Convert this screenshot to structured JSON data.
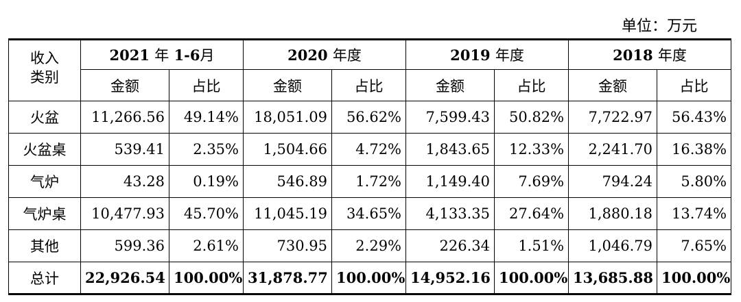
{
  "unit_label": "单位：万元",
  "header": {
    "row_head_line1": "收入",
    "row_head_line2": "类别",
    "periods": [
      {
        "year": "2021",
        "suffix": "年",
        "extra": "1-6",
        "suffix2": "月"
      },
      {
        "year": "2020",
        "suffix": "年度"
      },
      {
        "year": "2019",
        "suffix": "年度"
      },
      {
        "year": "2018",
        "suffix": "年度"
      }
    ],
    "amount_label": "金额",
    "ratio_label": "占比"
  },
  "rows": [
    {
      "category": "火盆",
      "values": [
        "11,266.56",
        "49.14%",
        "18,051.09",
        "56.62%",
        "7,599.43",
        "50.82%",
        "7,722.97",
        "56.43%"
      ]
    },
    {
      "category": "火盆桌",
      "values": [
        "539.41",
        "2.35%",
        "1,504.66",
        "4.72%",
        "1,843.65",
        "12.33%",
        "2,241.70",
        "16.38%"
      ]
    },
    {
      "category": "气炉",
      "values": [
        "43.28",
        "0.19%",
        "546.89",
        "1.72%",
        "1,149.40",
        "7.69%",
        "794.24",
        "5.80%"
      ]
    },
    {
      "category": "气炉桌",
      "values": [
        "10,477.93",
        "45.70%",
        "11,045.19",
        "34.65%",
        "4,133.35",
        "27.64%",
        "1,880.18",
        "13.74%"
      ]
    },
    {
      "category": "其他",
      "values": [
        "599.36",
        "2.61%",
        "730.95",
        "2.29%",
        "226.34",
        "1.51%",
        "1,046.79",
        "7.65%"
      ]
    }
  ],
  "total": {
    "category": "总计",
    "values": [
      "22,926.54",
      "100.00%",
      "31,878.77",
      "100.00%",
      "14,952.16",
      "100.00%",
      "13,685.88",
      "100.00%"
    ]
  }
}
